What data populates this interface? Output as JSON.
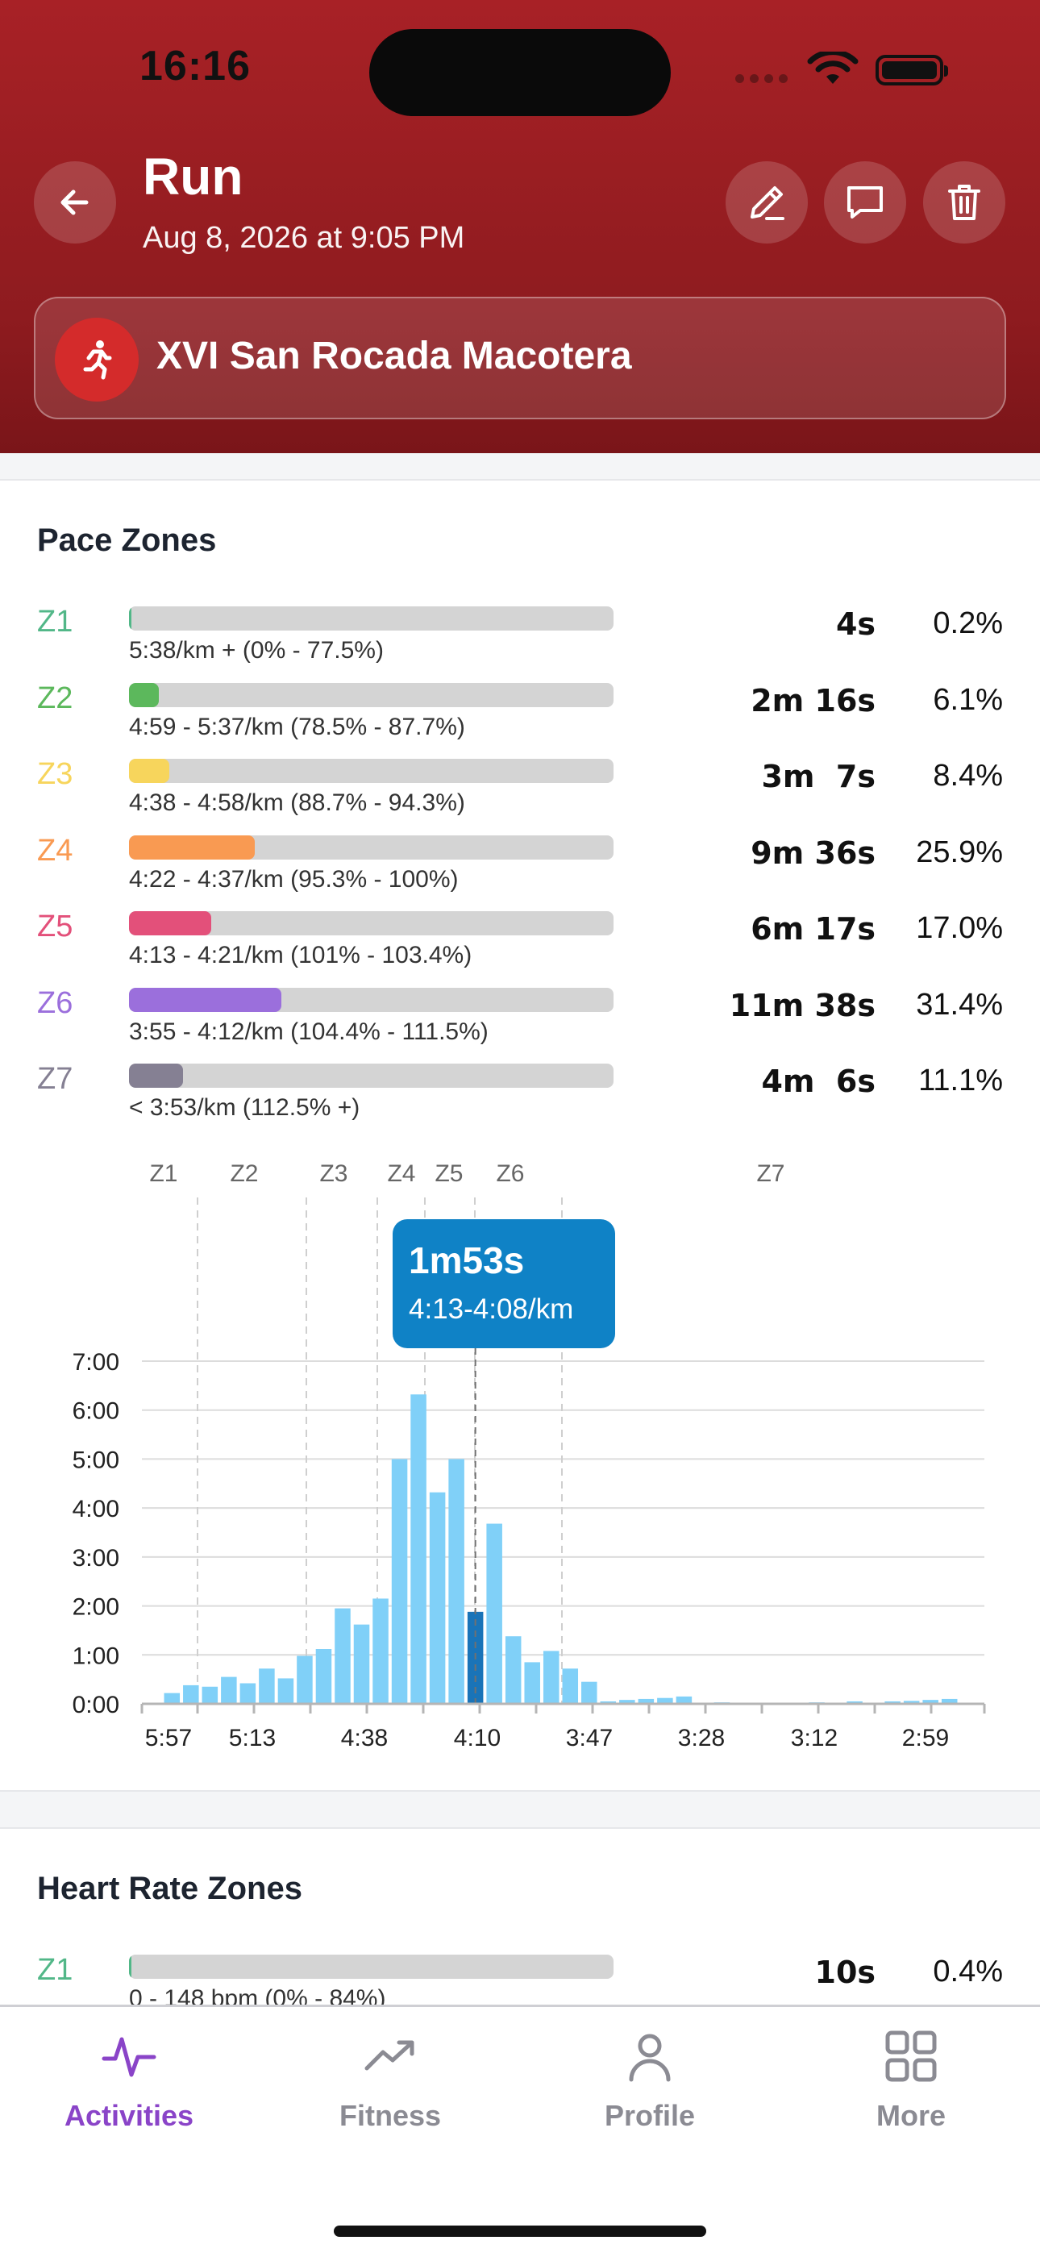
{
  "status_bar": {
    "time": "16:16"
  },
  "header": {
    "title": "Run",
    "subtitle": "Aug 8, 2026 at 9:05 PM",
    "event_name": "XVI San Rocada Macotera",
    "icons": [
      "back-arrow-icon",
      "pencil-icon",
      "comment-icon",
      "trash-icon",
      "runner-icon"
    ]
  },
  "pace_zones": {
    "title": "Pace Zones",
    "zones": [
      {
        "label": "Z1",
        "range": "5:38/km + (0% - 77.5%)",
        "time": "4s",
        "percent": "0.2%",
        "fraction": 0.002,
        "color": "#52b788"
      },
      {
        "label": "Z2",
        "range": "4:59 - 5:37/km (78.5% - 87.7%)",
        "time": "2m 16s",
        "percent": "6.1%",
        "fraction": 0.061,
        "color": "#5cb85c"
      },
      {
        "label": "Z3",
        "range": "4:38 - 4:58/km (88.7% - 94.3%)",
        "time": "3m  7s",
        "percent": "8.4%",
        "fraction": 0.084,
        "color": "#f7d55c"
      },
      {
        "label": "Z4",
        "range": "4:22 - 4:37/km (95.3% - 100%)",
        "time": "9m 36s",
        "percent": "25.9%",
        "fraction": 0.259,
        "color": "#f99a52"
      },
      {
        "label": "Z5",
        "range": "4:13 - 4:21/km (101% - 103.4%)",
        "time": "6m 17s",
        "percent": "17.0%",
        "fraction": 0.17,
        "color": "#e3507a"
      },
      {
        "label": "Z6",
        "range": "3:55 - 4:12/km (104.4% - 111.5%)",
        "time": "11m 38s",
        "percent": "31.4%",
        "fraction": 0.314,
        "color": "#9b6fdc"
      },
      {
        "label": "Z7",
        "range": "< 3:53/km (112.5% +)",
        "time": "4m  6s",
        "percent": "11.1%",
        "fraction": 0.111,
        "color": "#858093"
      }
    ]
  },
  "tooltip": {
    "duration": "1m53s",
    "range": "4:13-4:08/km"
  },
  "chart_data": {
    "type": "bar",
    "y_tick_labels": [
      "0:00",
      "1:00",
      "2:00",
      "3:00",
      "4:00",
      "5:00",
      "6:00",
      "7:00"
    ],
    "x_tick_labels": [
      "5:57",
      "5:13",
      "4:38",
      "4:10",
      "3:47",
      "3:28",
      "3:12",
      "2:59"
    ],
    "zone_labels": [
      "Z1",
      "Z2",
      "Z3",
      "Z4",
      "Z5",
      "Z6",
      "Z7"
    ],
    "ylim_minutes": [
      0,
      7
    ],
    "bar_color": "#80d0f8",
    "highlight_color": "#1a74b8",
    "highlight_index": 17,
    "values_minutes": [
      0,
      0.22,
      0.38,
      0.35,
      0.55,
      0.42,
      0.72,
      0.52,
      0.98,
      1.12,
      1.95,
      1.62,
      2.15,
      5.0,
      6.32,
      4.32,
      5.0,
      1.88,
      3.68,
      1.38,
      0.85,
      1.08,
      0.72,
      0.45,
      0.05,
      0.08,
      0.1,
      0.12,
      0.15,
      0.02,
      0.03,
      0.02,
      0.02,
      0.02,
      0.02,
      0.03,
      0.02,
      0.05,
      0.02,
      0.05,
      0.06,
      0.08,
      0.1,
      0
    ]
  },
  "heart_rate_zones": {
    "title": "Heart Rate Zones",
    "zones": [
      {
        "label": "Z1",
        "range": "0 - 148 bpm (0% - 84%)",
        "time": "10s",
        "percent": "0.4%",
        "fraction": 0.004,
        "color": "#52b788"
      }
    ]
  },
  "tabbar": {
    "active_color": "#8a44c8",
    "tabs": [
      {
        "label": "Activities",
        "icon": "activity-pulse-icon",
        "active": true
      },
      {
        "label": "Fitness",
        "icon": "trending-up-icon",
        "active": false
      },
      {
        "label": "Profile",
        "icon": "person-icon",
        "active": false
      },
      {
        "label": "More",
        "icon": "grid-icon",
        "active": false
      }
    ]
  }
}
